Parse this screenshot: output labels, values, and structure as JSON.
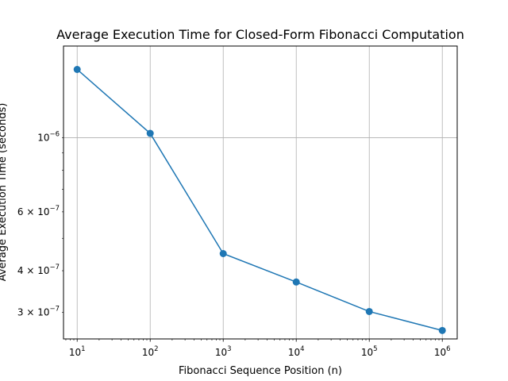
{
  "chart_data": {
    "type": "line",
    "title": "Average Execution Time for Closed-Form Fibonacci Computation",
    "xlabel": "Fibonacci Sequence Position (n)",
    "ylabel": "Average Execution Time (seconds)",
    "xscale": "log",
    "yscale": "log",
    "grid": true,
    "x": [
      10,
      100,
      1000,
      10000,
      100000,
      1000000
    ],
    "series": [
      {
        "values": [
          1.6e-06,
          1.03e-06,
          4.5e-07,
          3.7e-07,
          3.02e-07,
          2.65e-07
        ],
        "color": "#1f77b4",
        "marker": "circle"
      }
    ],
    "xlim": [
      6.5,
      1600000
    ],
    "ylim": [
      2.5e-07,
      1.88e-06
    ],
    "xticks": [
      {
        "base": "10",
        "exp": "1"
      },
      {
        "base": "10",
        "exp": "2"
      },
      {
        "base": "10",
        "exp": "3"
      },
      {
        "base": "10",
        "exp": "4"
      },
      {
        "base": "10",
        "exp": "5"
      },
      {
        "base": "10",
        "exp": "6"
      }
    ],
    "yticks": [
      {
        "mant": "",
        "exp": "−6",
        "value": 1e-06
      },
      {
        "mant": "6 × ",
        "exp": "−7",
        "value": 6e-07
      },
      {
        "mant": "4 × ",
        "exp": "−7",
        "value": 4e-07
      },
      {
        "mant": "3 × ",
        "exp": "−7",
        "value": 3e-07
      }
    ]
  }
}
